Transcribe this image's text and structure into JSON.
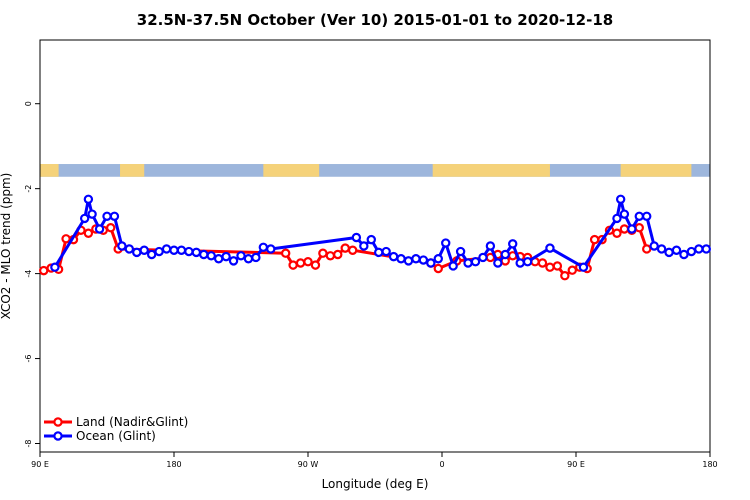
{
  "chart_data": {
    "type": "line",
    "title": "32.5N-37.5N October (Ver 10)   2015-01-01 to 2020-12-18",
    "xlabel": "Longitude (deg E)",
    "ylabel": "XCO2 - MLO trend (ppm)",
    "xlim": [
      90,
      450
    ],
    "ylim": [
      -8.2,
      1.5
    ],
    "x_ticks": [
      {
        "value": 90,
        "label": "90 E"
      },
      {
        "value": 162,
        "label": "180"
      },
      {
        "value": 234,
        "label": "90 W"
      },
      {
        "value": 306,
        "label": "0"
      },
      {
        "value": 378,
        "label": "90 E"
      },
      {
        "value": 450,
        "label": "180"
      }
    ],
    "y_ticks": [
      {
        "value": 0,
        "label": "0"
      },
      {
        "value": -2,
        "label": "-2"
      },
      {
        "value": -4,
        "label": "-4"
      },
      {
        "value": -6,
        "label": "-6"
      },
      {
        "value": -8,
        "label": "-8"
      }
    ],
    "grid": false,
    "legend_position": "bottom-left",
    "land_ocean_strip": {
      "y_range": [
        -1.72,
        -1.42
      ],
      "land_color": "#f5d27a",
      "ocean_color": "#9db6dc",
      "land_x_ranges": [
        [
          90,
          100
        ],
        [
          133,
          146
        ],
        [
          210,
          240
        ],
        [
          301,
          364
        ],
        [
          402,
          440
        ]
      ]
    },
    "series": [
      {
        "name": "Land (Nadir&Glint)",
        "color": "#ff0000",
        "points": [
          [
            92,
            -3.93
          ],
          [
            96,
            -3.87
          ],
          [
            100,
            -3.9
          ],
          [
            104,
            -3.18
          ],
          [
            108,
            -3.2
          ],
          [
            112,
            -2.98
          ],
          [
            116,
            -3.05
          ],
          [
            120,
            -2.95
          ],
          [
            124,
            -2.98
          ],
          [
            128,
            -2.92
          ],
          [
            132,
            -3.42
          ],
          [
            222,
            -3.52
          ],
          [
            226,
            -3.8
          ],
          [
            230,
            -3.75
          ],
          [
            234,
            -3.72
          ],
          [
            238,
            -3.8
          ],
          [
            242,
            -3.52
          ],
          [
            246,
            -3.58
          ],
          [
            250,
            -3.55
          ],
          [
            254,
            -3.4
          ],
          [
            258,
            -3.45
          ],
          [
            300,
            -3.75
          ],
          [
            304,
            -3.88
          ],
          [
            314,
            -3.7
          ],
          [
            332,
            -3.62
          ],
          [
            336,
            -3.55
          ],
          [
            340,
            -3.7
          ],
          [
            344,
            -3.58
          ],
          [
            348,
            -3.6
          ],
          [
            352,
            -3.62
          ],
          [
            356,
            -3.72
          ],
          [
            360,
            -3.75
          ],
          [
            364,
            -3.85
          ],
          [
            368,
            -3.82
          ],
          [
            372,
            -4.05
          ],
          [
            376,
            -3.92
          ],
          [
            380,
            -3.85
          ],
          [
            384,
            -3.88
          ],
          [
            388,
            -3.2
          ],
          [
            392,
            -3.2
          ],
          [
            396,
            -2.98
          ],
          [
            400,
            -3.05
          ],
          [
            404,
            -2.95
          ],
          [
            408,
            -2.98
          ],
          [
            412,
            -2.92
          ],
          [
            416,
            -3.42
          ]
        ]
      },
      {
        "name": "Ocean (Glint)",
        "color": "#0000ff",
        "points": [
          [
            98,
            -3.85
          ],
          [
            114,
            -2.7
          ],
          [
            116,
            -2.25
          ],
          [
            118,
            -2.6
          ],
          [
            122,
            -2.95
          ],
          [
            126,
            -2.65
          ],
          [
            130,
            -2.65
          ],
          [
            134,
            -3.35
          ],
          [
            138,
            -3.42
          ],
          [
            142,
            -3.5
          ],
          [
            146,
            -3.45
          ],
          [
            150,
            -3.55
          ],
          [
            154,
            -3.48
          ],
          [
            158,
            -3.42
          ],
          [
            162,
            -3.45
          ],
          [
            166,
            -3.45
          ],
          [
            170,
            -3.48
          ],
          [
            174,
            -3.5
          ],
          [
            178,
            -3.55
          ],
          [
            182,
            -3.58
          ],
          [
            186,
            -3.65
          ],
          [
            190,
            -3.6
          ],
          [
            194,
            -3.7
          ],
          [
            198,
            -3.58
          ],
          [
            202,
            -3.65
          ],
          [
            206,
            -3.62
          ],
          [
            210,
            -3.38
          ],
          [
            214,
            -3.42
          ],
          [
            260,
            -3.15
          ],
          [
            264,
            -3.35
          ],
          [
            268,
            -3.2
          ],
          [
            272,
            -3.5
          ],
          [
            276,
            -3.48
          ],
          [
            280,
            -3.6
          ],
          [
            284,
            -3.65
          ],
          [
            288,
            -3.7
          ],
          [
            292,
            -3.65
          ],
          [
            296,
            -3.68
          ],
          [
            300,
            -3.75
          ],
          [
            304,
            -3.65
          ],
          [
            308,
            -3.28
          ],
          [
            312,
            -3.82
          ],
          [
            316,
            -3.48
          ],
          [
            320,
            -3.75
          ],
          [
            324,
            -3.72
          ],
          [
            328,
            -3.62
          ],
          [
            332,
            -3.35
          ],
          [
            336,
            -3.75
          ],
          [
            340,
            -3.55
          ],
          [
            344,
            -3.3
          ],
          [
            348,
            -3.75
          ],
          [
            352,
            -3.72
          ],
          [
            364,
            -3.4
          ],
          [
            382,
            -3.85
          ],
          [
            400,
            -2.7
          ],
          [
            402,
            -2.25
          ],
          [
            404,
            -2.6
          ],
          [
            408,
            -2.95
          ],
          [
            412,
            -2.65
          ],
          [
            416,
            -2.65
          ],
          [
            420,
            -3.35
          ],
          [
            424,
            -3.42
          ],
          [
            428,
            -3.5
          ],
          [
            432,
            -3.45
          ],
          [
            436,
            -3.55
          ],
          [
            440,
            -3.48
          ],
          [
            444,
            -3.42
          ],
          [
            448,
            -3.42
          ]
        ]
      }
    ]
  }
}
